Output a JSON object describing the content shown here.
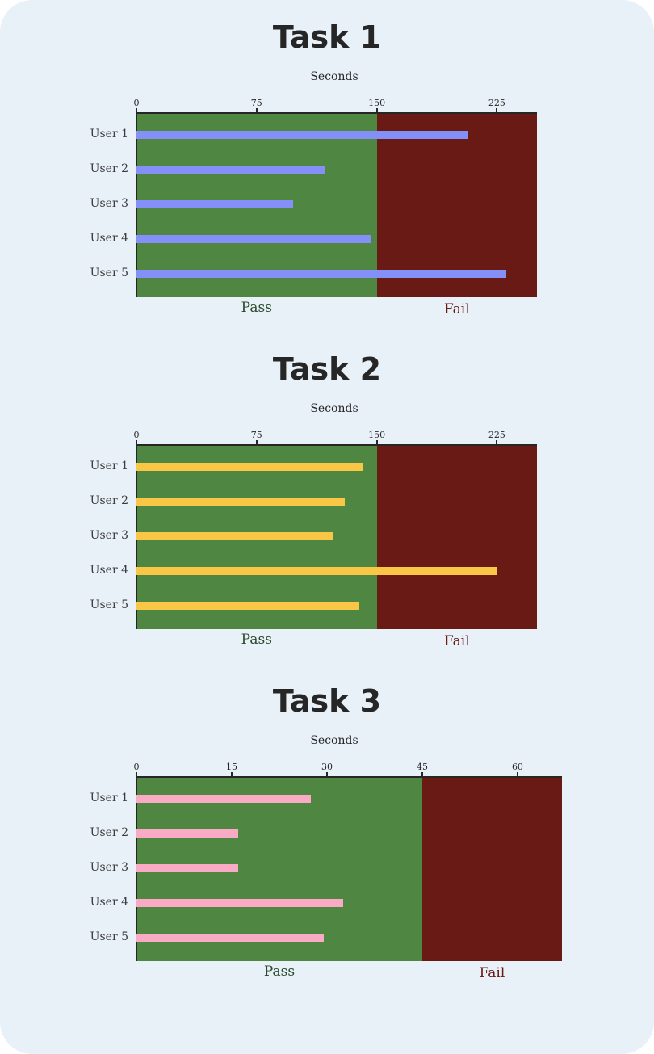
{
  "colors": {
    "background": "#e8f0f8",
    "pass_zone": "#4f8642",
    "fail_zone": "#6a1a15",
    "pass_label": "#2b4a2b",
    "fail_label": "#6a1a15",
    "axis": "#262626"
  },
  "chart_data": [
    {
      "type": "bar",
      "orientation": "horizontal",
      "title": "Task 1",
      "xlabel": "Seconds",
      "ylabel": "",
      "categories": [
        "User 1",
        "User 2",
        "User 3",
        "User 4",
        "User 5"
      ],
      "values": [
        207,
        118,
        98,
        146,
        231
      ],
      "xlim": [
        0,
        250
      ],
      "xticks": [
        0,
        75,
        150,
        225
      ],
      "threshold": 150,
      "zones": [
        {
          "label": "Pass",
          "from": 0,
          "to": 150
        },
        {
          "label": "Fail",
          "from": 150,
          "to": 250
        }
      ],
      "bar_color": "#8490f8",
      "grid": false
    },
    {
      "type": "bar",
      "orientation": "horizontal",
      "title": "Task 2",
      "xlabel": "Seconds",
      "ylabel": "",
      "categories": [
        "User 1",
        "User 2",
        "User 3",
        "User 4",
        "User 5"
      ],
      "values": [
        141,
        130,
        123,
        225,
        139
      ],
      "xlim": [
        0,
        250
      ],
      "xticks": [
        0,
        75,
        150,
        225
      ],
      "threshold": 150,
      "zones": [
        {
          "label": "Pass",
          "from": 0,
          "to": 150
        },
        {
          "label": "Fail",
          "from": 150,
          "to": 250
        }
      ],
      "bar_color": "#f9c646",
      "grid": false
    },
    {
      "type": "bar",
      "orientation": "horizontal",
      "title": "Task 3",
      "xlabel": "Seconds",
      "ylabel": "",
      "categories": [
        "User 1",
        "User 2",
        "User 3",
        "User 4",
        "User 5"
      ],
      "values": [
        27.5,
        16,
        16,
        32.5,
        29.5
      ],
      "xlim": [
        0,
        67
      ],
      "xticks": [
        0,
        15,
        30,
        45,
        60
      ],
      "threshold": 45,
      "zones": [
        {
          "label": "Pass",
          "from": 0,
          "to": 45
        },
        {
          "label": "Fail",
          "from": 45,
          "to": 67
        }
      ],
      "bar_color": "#f9abc6",
      "grid": false
    }
  ]
}
